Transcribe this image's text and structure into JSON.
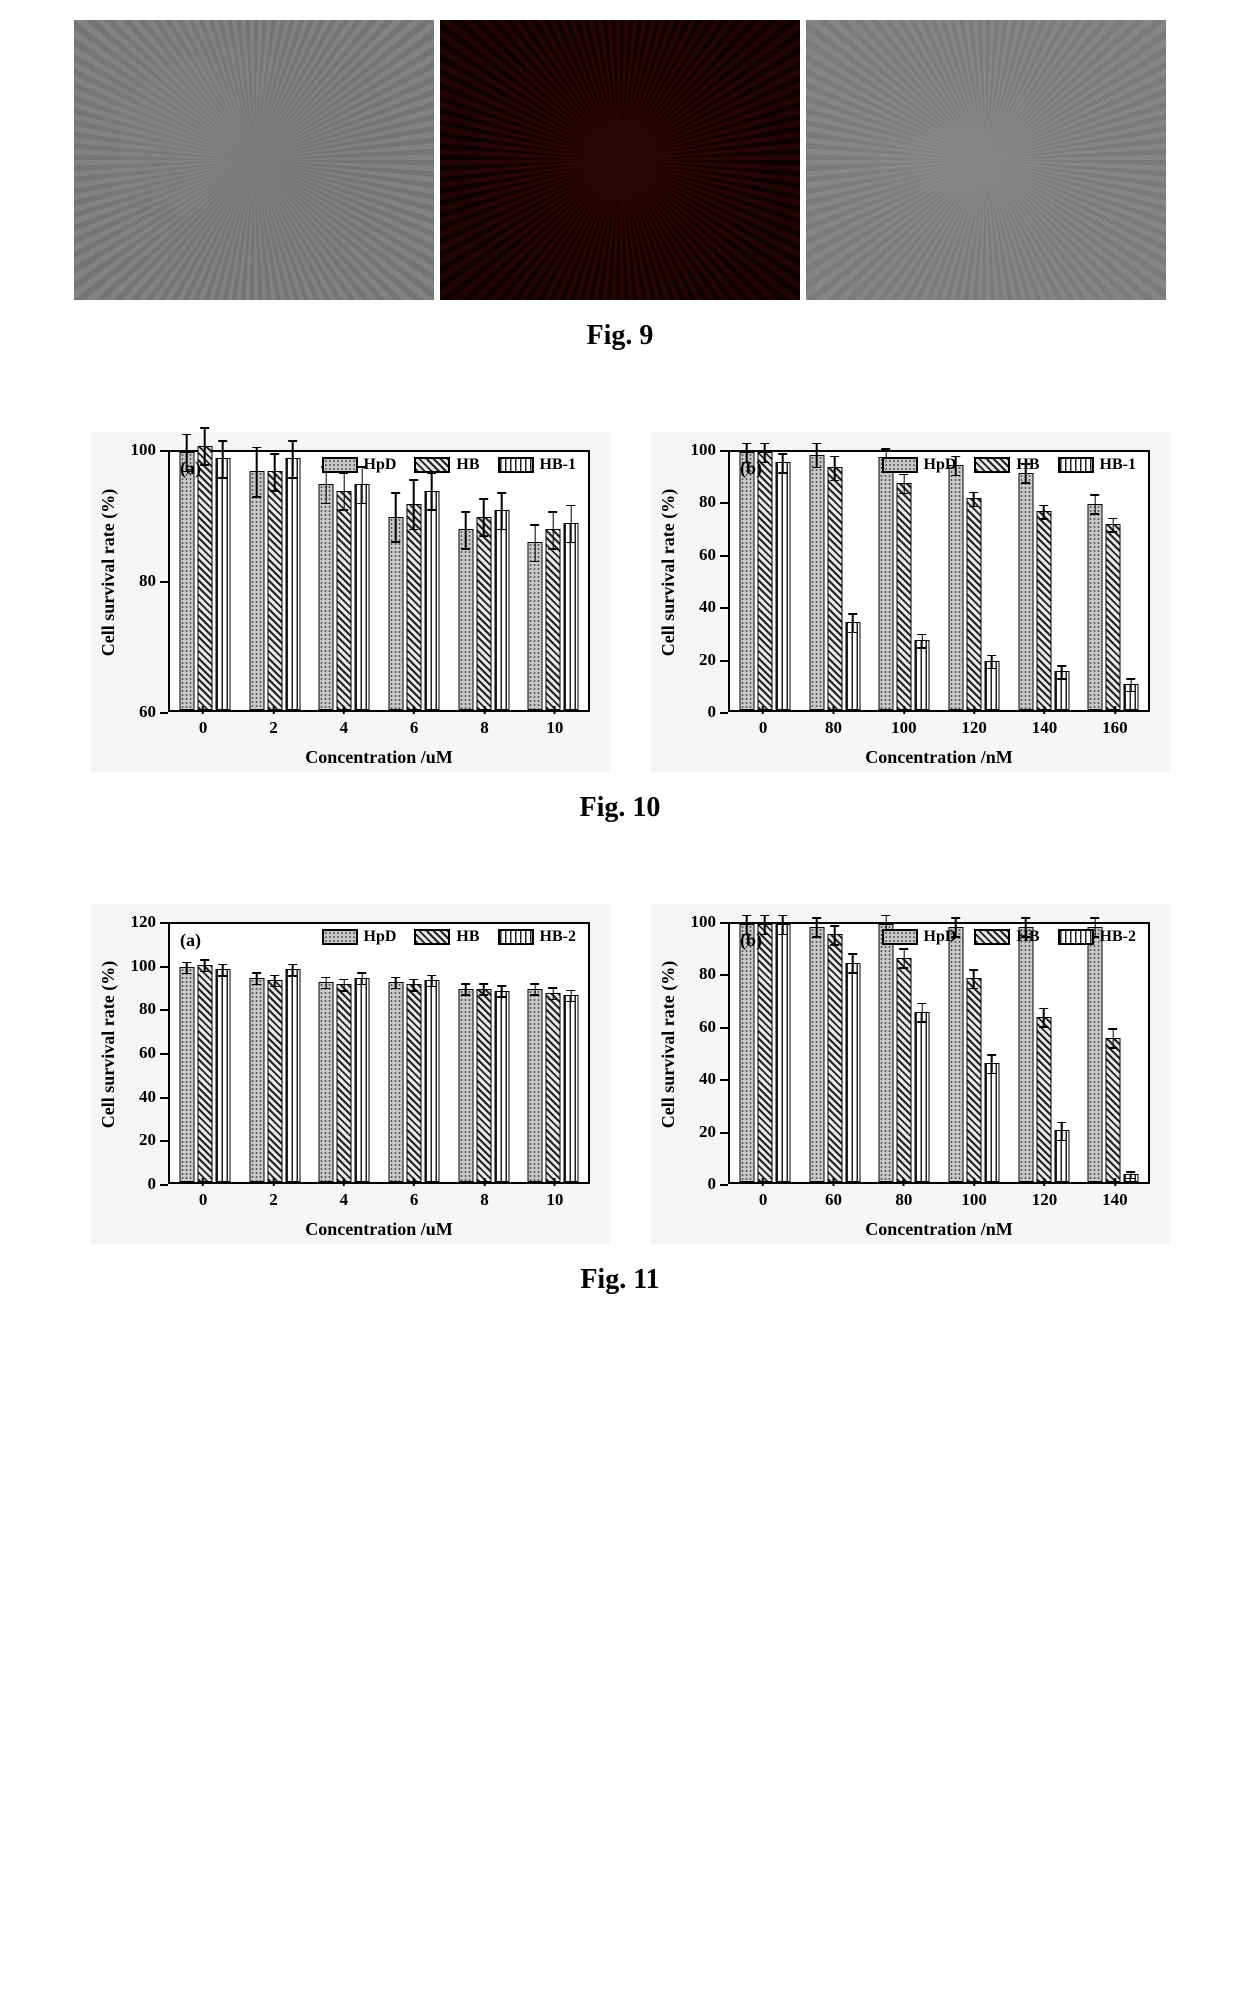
{
  "fig9": {
    "caption": "Fig. 9",
    "panels": [
      {
        "style": "grey"
      },
      {
        "style": "dark"
      },
      {
        "style": "grey2"
      }
    ]
  },
  "fig10": {
    "caption": "Fig. 10",
    "chart_a": {
      "panel_label": "(a)",
      "type": "bar",
      "ylabel": "Cell survival rate (%)",
      "xlabel": "Concentration /uM",
      "ylim": [
        60,
        100
      ],
      "ytick_step": 20,
      "categories": [
        "0",
        "2",
        "4",
        "6",
        "8",
        "10"
      ],
      "series": [
        {
          "name": "HpD",
          "pattern": "pat-dots",
          "values": [
            100,
            97,
            95,
            90,
            88,
            86
          ],
          "err": [
            3,
            4,
            3,
            4,
            3,
            3
          ]
        },
        {
          "name": "HB",
          "pattern": "pat-hatch",
          "values": [
            101,
            97,
            94,
            92,
            90,
            88
          ],
          "err": [
            3,
            3,
            3,
            4,
            3,
            3
          ]
        },
        {
          "name": "HB-1",
          "pattern": "pat-vert",
          "values": [
            99,
            99,
            95,
            94,
            91,
            89
          ],
          "err": [
            3,
            3,
            3,
            3,
            3,
            3
          ]
        }
      ],
      "background_color": "#ffffff",
      "bar_border_color": "#000000",
      "label_fontsize": 18,
      "tick_fontsize": 17
    },
    "chart_b": {
      "panel_label": "(b)",
      "type": "bar",
      "ylabel": "Cell survival rate (%)",
      "xlabel": "Concentration /nM",
      "ylim": [
        0,
        100
      ],
      "ytick_step": 20,
      "categories": [
        "0",
        "80",
        "100",
        "120",
        "140",
        "160"
      ],
      "series": [
        {
          "name": "HpD",
          "pattern": "pat-dots",
          "values": [
            100,
            99,
            98,
            95,
            92,
            80
          ],
          "err": [
            4,
            5,
            4,
            4,
            4,
            4
          ]
        },
        {
          "name": "HB",
          "pattern": "pat-hatch",
          "values": [
            100,
            94,
            88,
            82,
            77,
            72
          ],
          "err": [
            4,
            5,
            4,
            3,
            3,
            3
          ]
        },
        {
          "name": "HB-1",
          "pattern": "pat-vert",
          "values": [
            96,
            34,
            27,
            19,
            15,
            10
          ],
          "err": [
            4,
            4,
            3,
            3,
            3,
            3
          ]
        }
      ],
      "background_color": "#ffffff",
      "bar_border_color": "#000000",
      "label_fontsize": 18,
      "tick_fontsize": 17
    }
  },
  "fig11": {
    "caption": "Fig. 11",
    "chart_a": {
      "panel_label": "(a)",
      "type": "bar",
      "ylabel": "Cell survival rate (%)",
      "xlabel": "Concentration /uM",
      "ylim": [
        0,
        120
      ],
      "ytick_step": 20,
      "categories": [
        "0",
        "2",
        "4",
        "6",
        "8",
        "10"
      ],
      "series": [
        {
          "name": "HpD",
          "pattern": "pat-dots",
          "values": [
            100,
            95,
            93,
            93,
            90,
            90
          ],
          "err": [
            3,
            3,
            3,
            3,
            3,
            3
          ]
        },
        {
          "name": "HB",
          "pattern": "pat-hatch",
          "values": [
            101,
            94,
            92,
            92,
            90,
            88
          ],
          "err": [
            3,
            3,
            3,
            3,
            3,
            3
          ]
        },
        {
          "name": "HB-2",
          "pattern": "pat-vert",
          "values": [
            99,
            99,
            95,
            94,
            89,
            87
          ],
          "err": [
            3,
            3,
            3,
            3,
            3,
            3
          ]
        }
      ],
      "background_color": "#ffffff",
      "bar_border_color": "#000000",
      "label_fontsize": 18,
      "tick_fontsize": 17
    },
    "chart_b": {
      "panel_label": "(b)",
      "type": "bar",
      "ylabel": "Cell survival rate (%)",
      "xlabel": "Concentration /nM",
      "ylim": [
        0,
        100
      ],
      "ytick_step": 20,
      "categories": [
        "0",
        "60",
        "80",
        "100",
        "120",
        "140"
      ],
      "series": [
        {
          "name": "HpD",
          "pattern": "pat-dots",
          "values": [
            100,
            99,
            100,
            99,
            99,
            99
          ],
          "err": [
            4,
            4,
            4,
            4,
            4,
            4
          ]
        },
        {
          "name": "HB",
          "pattern": "pat-hatch",
          "values": [
            100,
            96,
            87,
            79,
            64,
            56
          ],
          "err": [
            4,
            4,
            4,
            4,
            4,
            4
          ]
        },
        {
          "name": "HB-2",
          "pattern": "pat-vert",
          "values": [
            100,
            85,
            66,
            46,
            20,
            3
          ],
          "err": [
            4,
            4,
            4,
            4,
            4,
            2
          ]
        }
      ],
      "background_color": "#ffffff",
      "bar_border_color": "#000000",
      "label_fontsize": 18,
      "tick_fontsize": 17
    }
  }
}
